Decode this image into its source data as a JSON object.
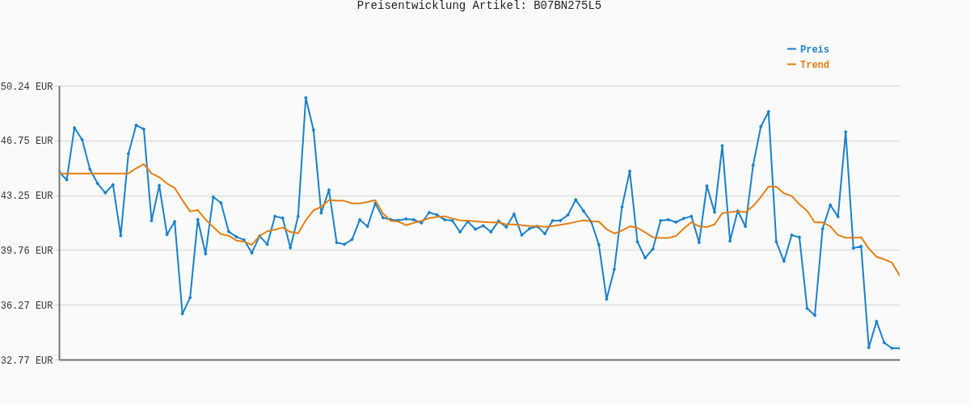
{
  "chart_data": {
    "type": "line",
    "title": "Preisentwicklung Artikel: B07BN275L5",
    "categories": [
      null,
      null,
      null,
      null,
      null,
      null,
      null,
      null,
      null,
      null,
      null,
      null,
      null,
      null,
      null,
      null,
      null,
      null,
      null,
      null,
      null,
      null,
      null,
      null,
      null,
      null,
      null,
      null,
      null,
      null,
      null,
      null,
      null,
      null,
      null,
      null,
      null,
      null,
      null,
      null,
      null,
      null,
      null,
      null,
      null,
      null,
      null,
      null,
      null,
      null,
      null,
      null,
      null,
      null,
      null,
      null,
      null,
      null,
      null,
      null,
      null,
      null,
      null,
      null,
      null,
      null,
      null,
      null,
      null,
      null,
      null,
      null,
      null,
      null,
      null,
      null,
      null,
      null,
      null,
      null,
      null,
      null,
      null,
      null,
      null,
      null,
      null,
      null,
      null,
      null,
      null,
      null,
      null,
      null,
      null,
      null,
      null,
      null,
      null,
      null,
      null,
      null,
      null,
      null,
      null,
      null,
      null,
      null,
      null,
      null
    ],
    "series": [
      {
        "name": "Preis",
        "color": "#1a80c8",
        "marker": "diamond",
        "values": [
          44.74,
          44.23,
          47.55,
          46.8,
          44.92,
          44.0,
          43.4,
          43.92,
          40.67,
          45.9,
          47.72,
          47.46,
          41.62,
          43.87,
          40.74,
          41.57,
          35.69,
          36.72,
          41.7,
          39.51,
          43.14,
          42.77,
          40.93,
          40.6,
          40.4,
          39.57,
          40.65,
          40.12,
          41.91,
          41.79,
          39.9,
          41.91,
          49.47,
          47.41,
          42.11,
          43.59,
          40.23,
          40.12,
          40.43,
          41.69,
          41.26,
          42.73,
          41.82,
          41.7,
          41.65,
          41.74,
          41.69,
          41.48,
          42.15,
          42.0,
          41.69,
          41.63,
          40.91,
          41.57,
          41.08,
          41.31,
          40.91,
          41.6,
          41.22,
          42.05,
          40.71,
          41.12,
          41.27,
          40.79,
          41.63,
          41.63,
          42.0,
          42.97,
          42.25,
          41.57,
          40.09,
          36.62,
          38.53,
          42.51,
          44.78,
          40.28,
          39.25,
          39.82,
          41.63,
          41.69,
          41.53,
          41.77,
          41.91,
          40.23,
          43.85,
          42.17,
          46.41,
          40.33,
          42.25,
          41.26,
          45.17,
          47.63,
          48.58,
          40.28,
          39.04,
          40.71,
          40.57,
          36.03,
          35.59,
          41.1,
          42.63,
          41.88,
          47.29,
          39.88,
          39.99,
          33.53,
          35.21,
          33.84,
          33.49,
          33.49
        ]
      },
      {
        "name": "Trend",
        "color": "#e07f14",
        "values": [
          44.64,
          44.64,
          44.64,
          44.64,
          44.64,
          44.64,
          44.64,
          44.64,
          44.64,
          44.64,
          44.97,
          45.24,
          44.64,
          44.4,
          44.0,
          43.71,
          42.94,
          42.22,
          42.3,
          41.7,
          41.22,
          40.77,
          40.67,
          40.36,
          40.29,
          40.09,
          40.65,
          40.95,
          41.05,
          41.19,
          40.91,
          40.82,
          41.65,
          42.29,
          42.51,
          42.94,
          42.91,
          42.89,
          42.73,
          42.73,
          42.82,
          42.94,
          42.08,
          41.62,
          41.57,
          41.34,
          41.49,
          41.62,
          41.79,
          41.86,
          41.91,
          41.77,
          41.65,
          41.63,
          41.58,
          41.55,
          41.52,
          41.52,
          41.39,
          41.39,
          41.34,
          41.29,
          41.29,
          41.24,
          41.29,
          41.36,
          41.44,
          41.55,
          41.65,
          41.6,
          41.57,
          41.08,
          40.81,
          41.0,
          41.27,
          41.17,
          40.88,
          40.57,
          40.52,
          40.52,
          40.65,
          41.13,
          41.53,
          41.27,
          41.22,
          41.39,
          42.11,
          42.17,
          42.22,
          42.17,
          42.56,
          43.14,
          43.8,
          43.8,
          43.37,
          43.2,
          42.68,
          42.25,
          41.52,
          41.52,
          41.27,
          40.71,
          40.54,
          40.54,
          40.57,
          39.85,
          39.33,
          39.16,
          38.95,
          38.13
        ]
      }
    ],
    "ylim": [
      32.77,
      50.24
    ],
    "yticks": [
      {
        "value": 32.77,
        "label": "32.77 EUR"
      },
      {
        "value": 36.27,
        "label": "36.27 EUR"
      },
      {
        "value": 39.76,
        "label": "39.76 EUR"
      },
      {
        "value": 43.25,
        "label": "43.25 EUR"
      },
      {
        "value": 46.75,
        "label": "46.75 EUR"
      },
      {
        "value": 50.24,
        "label": "50.24 EUR"
      }
    ],
    "grid": "y",
    "legend": "top right",
    "tick_labels": "y"
  }
}
